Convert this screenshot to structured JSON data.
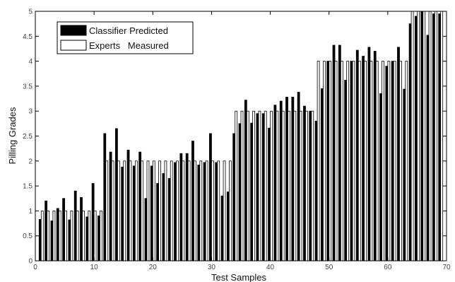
{
  "chart_data": {
    "type": "bar",
    "xlabel": "Test Samples",
    "ylabel": "Pilling Grades",
    "xlim": [
      0,
      70
    ],
    "ylim": [
      0,
      5
    ],
    "x_ticks": [
      0,
      10,
      20,
      30,
      40,
      50,
      60,
      70
    ],
    "y_ticks": [
      0,
      0.5,
      1,
      1.5,
      2,
      2.5,
      3,
      3.5,
      4,
      4.5,
      5
    ],
    "y_tick_labels": [
      "0",
      "0.5",
      "1",
      "1.5",
      "2",
      "2.5",
      "3",
      "3.5",
      "4",
      "4.5",
      "5"
    ],
    "legend_position": "top-left",
    "x": [
      1,
      2,
      3,
      4,
      5,
      6,
      7,
      8,
      9,
      10,
      11,
      12,
      13,
      14,
      15,
      16,
      17,
      18,
      19,
      20,
      21,
      22,
      23,
      24,
      25,
      26,
      27,
      28,
      29,
      30,
      31,
      32,
      33,
      34,
      35,
      36,
      37,
      38,
      39,
      40,
      41,
      42,
      43,
      44,
      45,
      46,
      47,
      48,
      49,
      50,
      51,
      52,
      53,
      54,
      55,
      56,
      57,
      58,
      59,
      60,
      61,
      62,
      63,
      64,
      65,
      66,
      67,
      68,
      69
    ],
    "series": [
      {
        "name": "Classifier Predicted",
        "color": "#000000",
        "values": [
          0.83,
          1.2,
          0.8,
          1.05,
          1.25,
          0.82,
          1.4,
          1.27,
          0.88,
          1.55,
          0.9,
          2.55,
          2.18,
          2.65,
          1.88,
          2.22,
          1.9,
          2.18,
          1.25,
          1.9,
          1.55,
          1.75,
          1.65,
          1.97,
          2.15,
          2.15,
          2.4,
          1.92,
          1.97,
          2.55,
          1.97,
          1.3,
          1.38,
          2.55,
          2.75,
          3.22,
          2.76,
          2.95,
          2.95,
          2.66,
          3.12,
          3.2,
          3.28,
          3.28,
          3.38,
          3.1,
          3.0,
          2.8,
          3.45,
          4.0,
          4.32,
          4.32,
          3.62,
          4.0,
          4.22,
          4.1,
          4.28,
          4.2,
          3.35,
          3.9,
          4.0,
          4.28,
          3.44,
          4.75,
          4.9,
          5.0,
          4.52,
          4.95,
          4.95
        ]
      },
      {
        "name": "Experts   Measured",
        "color": "#ffffff",
        "values": [
          1,
          1,
          1,
          1,
          1,
          1,
          1,
          1,
          1,
          1,
          1,
          2,
          2,
          2,
          2,
          2,
          2,
          2,
          2,
          2,
          2,
          2,
          2,
          2,
          2,
          2,
          2,
          2,
          2,
          2,
          2,
          2,
          2,
          3,
          3,
          3,
          3,
          3,
          3,
          3,
          3,
          3,
          3,
          3,
          3,
          3,
          3,
          4,
          4,
          4,
          4,
          4,
          4,
          4,
          4,
          4,
          4,
          4,
          4,
          4,
          4,
          4,
          4,
          5,
          5,
          5,
          5,
          5,
          5
        ]
      }
    ]
  }
}
